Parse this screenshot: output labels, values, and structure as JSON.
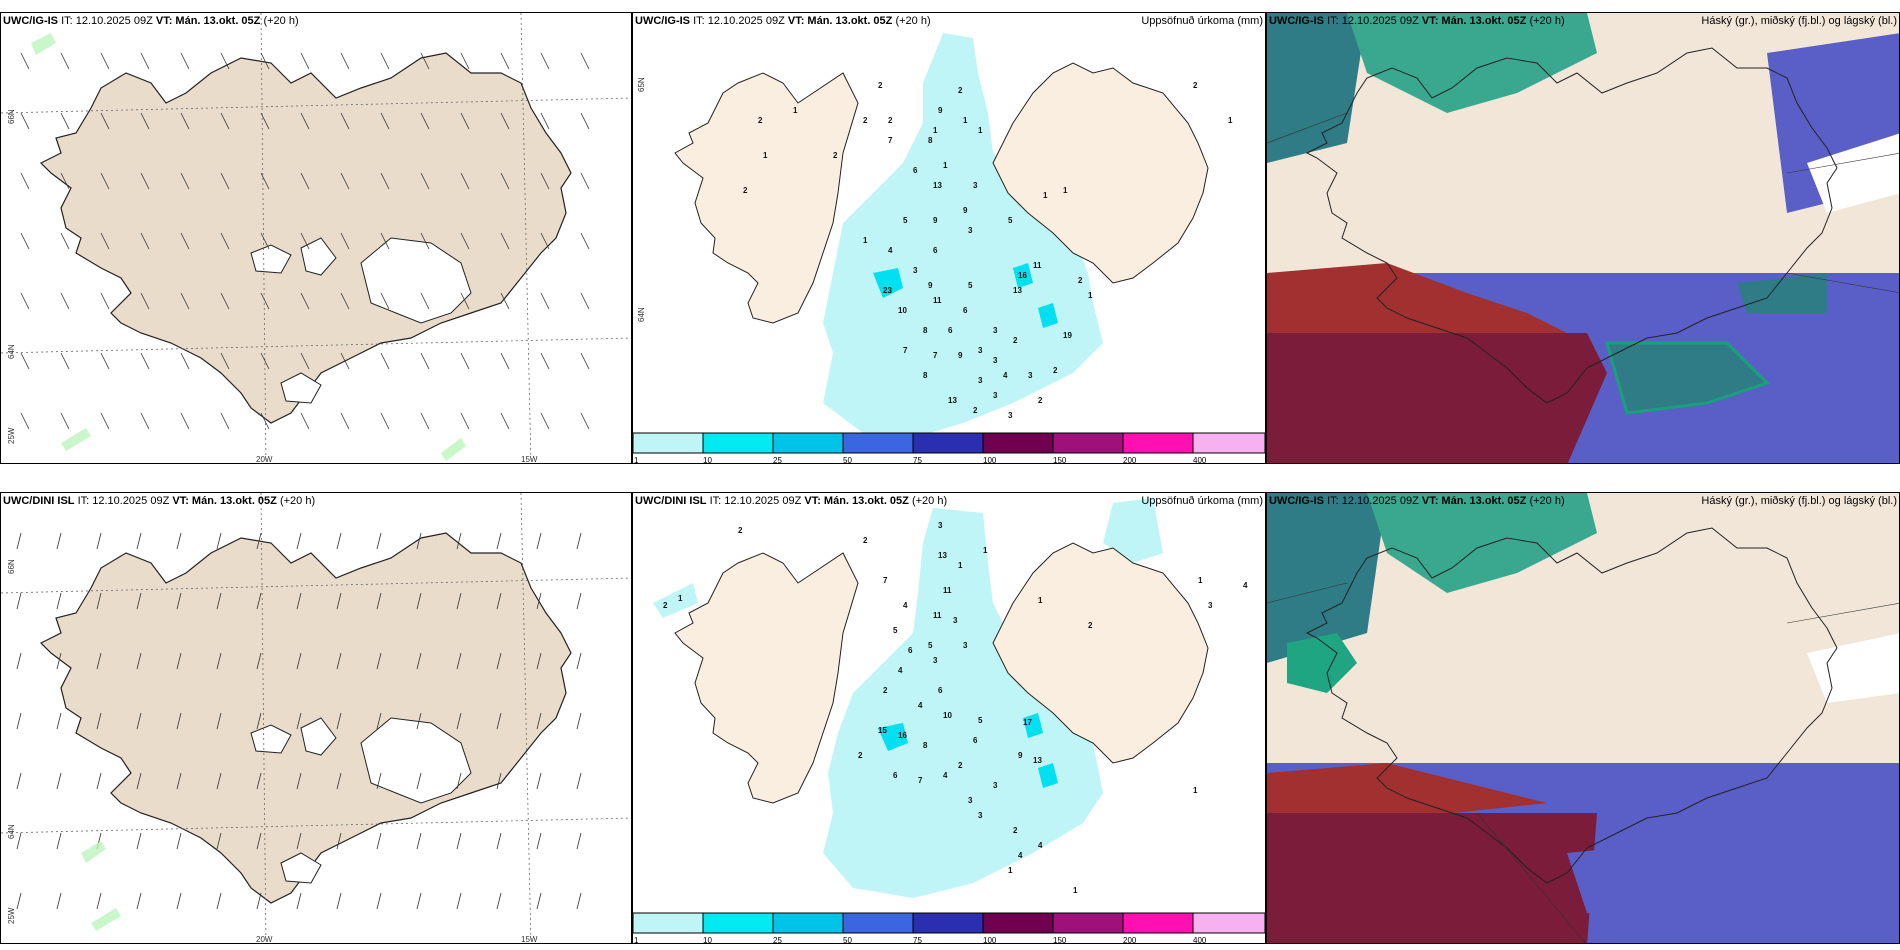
{
  "rows": [
    {
      "wind": {
        "model": "UWC/IG-IS",
        "it_label": "IT: 12.10.2025 09Z",
        "vt_label": "VT: Mán. 13.okt. 05Z",
        "lead": "(+20 h)"
      },
      "precip": {
        "model": "UWC/IG-IS",
        "it_label": "IT: 12.10.2025 09Z",
        "vt_label": "VT: Mán. 13.okt. 05Z",
        "lead": "(+20 h)",
        "right_label": "Uppsöfnuð úrkoma (mm)"
      },
      "cloud": {
        "model": "UWC/IG-IS",
        "it_label": "IT: 12.10.2025 09Z",
        "vt_label": "VT: Mán. 13.okt. 05Z",
        "lead": "(+20 h)",
        "right_label": "Háský (gr.), miðský (fj.bl.) og lágský (bl.)"
      }
    },
    {
      "wind": {
        "model": "UWC/DINI ISL",
        "it_label": "IT: 12.10.2025 09Z",
        "vt_label": "VT: Mán. 13.okt. 05Z",
        "lead": "(+20 h)"
      },
      "precip": {
        "model": "UWC/DINI ISL",
        "it_label": "IT: 12.10.2025 09Z",
        "vt_label": "VT: Mán. 13.okt. 05Z",
        "lead": "(+20 h)",
        "right_label": "Uppsöfnuð úrkoma (mm)"
      },
      "cloud": {
        "model": "UWC/IG-IS",
        "it_label": "IT: 12.10.2025 09Z",
        "vt_label": "VT: Mán. 13.okt. 05Z",
        "lead": "(+20 h)",
        "right_label": "Háský (gr.), miðský (fj.bl.) og lágský (bl.)"
      }
    }
  ],
  "axis_labels": {
    "lat_66": "66N",
    "lat_64": "64N",
    "lon_25": "25W",
    "lon_20": "20W",
    "lon_15": "15W",
    "lat_65": "65N"
  },
  "colorbar": {
    "labels": [
      "1",
      "10",
      "25",
      "50",
      "75",
      "100",
      "150",
      "200",
      "400"
    ],
    "colors": [
      "#bff5f7",
      "#00eaf0",
      "#00c3e8",
      "#3a66e0",
      "#2a2fb0",
      "#700050",
      "#a0107a",
      "#ff10b0",
      "#f7b0f0"
    ]
  },
  "precip_values_top": [
    "2",
    "2",
    "1",
    "1",
    "2",
    "2",
    "2",
    "2",
    "1",
    "1",
    "2",
    "1",
    "7",
    "8",
    "9",
    "1",
    "6",
    "13",
    "3",
    "9",
    "9",
    "3",
    "5",
    "5",
    "4",
    "6",
    "1",
    "3",
    "9",
    "5",
    "11",
    "23",
    "11",
    "6",
    "13",
    "16",
    "10",
    "8",
    "6",
    "7",
    "9",
    "7",
    "8",
    "3",
    "2",
    "3",
    "3",
    "4",
    "3",
    "3",
    "3",
    "13",
    "19",
    "2",
    "3",
    "2",
    "2",
    "2",
    "1",
    "2",
    "1",
    "1",
    "1"
  ],
  "precip_values_bottom": [
    "2",
    "1",
    "2",
    "3",
    "2",
    "13",
    "1",
    "1",
    "7",
    "11",
    "4",
    "5",
    "6",
    "11",
    "3",
    "3",
    "3",
    "5",
    "4",
    "6",
    "2",
    "4",
    "5",
    "10",
    "6",
    "15",
    "16",
    "17",
    "13",
    "2",
    "2",
    "8",
    "7",
    "4",
    "6",
    "9",
    "3",
    "3",
    "3",
    "2",
    "4",
    "4",
    "1",
    "1",
    "1",
    "2",
    "4",
    "3",
    "1",
    "1"
  ]
}
